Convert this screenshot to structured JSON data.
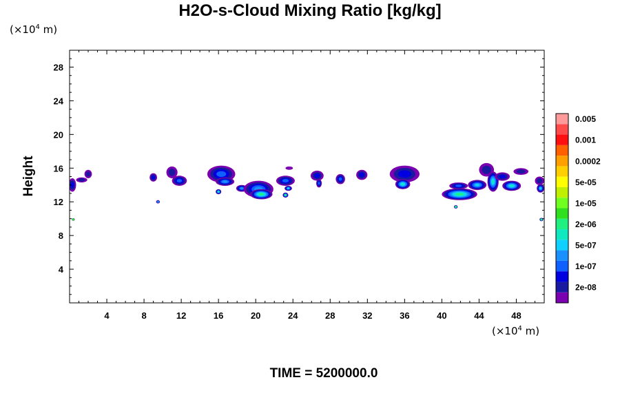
{
  "chart_data": {
    "type": "heatmap",
    "title": "H2O-s-Cloud Mixing Ratio [kg/kg]",
    "ylabel": "Height",
    "xlabel": "",
    "x_unit_prefix": "(×10",
    "unit_exponent": "4",
    "unit_suffix": " m)",
    "xlim": [
      0,
      51
    ],
    "ylim": [
      0,
      30
    ],
    "x_ticks": [
      4,
      8,
      12,
      16,
      20,
      24,
      28,
      32,
      36,
      40,
      44,
      48
    ],
    "y_ticks": [
      4,
      8,
      12,
      16,
      20,
      24,
      28
    ],
    "grid": false,
    "legend_position": "right",
    "colorbar": {
      "levels": [
        "2e-08",
        "1e-07",
        "5e-07",
        "2e-06",
        "1e-05",
        "5e-05",
        "0.0002",
        "0.001",
        "0.005"
      ],
      "colors": [
        "#7a00b0",
        "#1a1aa0",
        "#0000e0",
        "#1060ff",
        "#1a90ff",
        "#10d0ff",
        "#10e8c0",
        "#20f080",
        "#30e020",
        "#70ff20",
        "#c0f000",
        "#ffff00",
        "#ffd000",
        "#ffa000",
        "#ff6000",
        "#ff1010",
        "#ff4a4a",
        "#ff9a9a"
      ]
    },
    "cloud_regions": [
      {
        "x": 0.3,
        "y": 14.0,
        "rx": 0.4,
        "ry": 0.8,
        "level": 3
      },
      {
        "x": 1.3,
        "y": 14.6,
        "rx": 0.6,
        "ry": 0.3,
        "level": 2
      },
      {
        "x": 2.0,
        "y": 15.3,
        "rx": 0.4,
        "ry": 0.5,
        "level": 2
      },
      {
        "x": 9.0,
        "y": 14.9,
        "rx": 0.4,
        "ry": 0.5,
        "level": 3
      },
      {
        "x": 9.5,
        "y": 12.0,
        "rx": 0.2,
        "ry": 0.2,
        "level": 5
      },
      {
        "x": 11.0,
        "y": 15.5,
        "rx": 0.6,
        "ry": 0.7,
        "level": 2
      },
      {
        "x": 11.8,
        "y": 14.5,
        "rx": 0.8,
        "ry": 0.6,
        "level": 4
      },
      {
        "x": 16.3,
        "y": 15.3,
        "rx": 1.5,
        "ry": 1.0,
        "level": 4
      },
      {
        "x": 16.7,
        "y": 14.4,
        "rx": 1.0,
        "ry": 0.5,
        "level": 5
      },
      {
        "x": 16.0,
        "y": 13.2,
        "rx": 0.3,
        "ry": 0.3,
        "level": 7
      },
      {
        "x": 18.5,
        "y": 13.6,
        "rx": 0.6,
        "ry": 0.4,
        "level": 5
      },
      {
        "x": 20.3,
        "y": 13.5,
        "rx": 1.6,
        "ry": 1.0,
        "level": 5
      },
      {
        "x": 20.6,
        "y": 12.9,
        "rx": 1.2,
        "ry": 0.6,
        "level": 8
      },
      {
        "x": 23.2,
        "y": 14.5,
        "rx": 1.0,
        "ry": 0.6,
        "level": 4
      },
      {
        "x": 23.2,
        "y": 12.8,
        "rx": 0.3,
        "ry": 0.3,
        "level": 8
      },
      {
        "x": 23.5,
        "y": 13.6,
        "rx": 0.4,
        "ry": 0.3,
        "level": 6
      },
      {
        "x": 23.6,
        "y": 16.0,
        "rx": 0.4,
        "ry": 0.2,
        "level": 1
      },
      {
        "x": 26.6,
        "y": 15.1,
        "rx": 0.7,
        "ry": 0.6,
        "level": 3
      },
      {
        "x": 26.8,
        "y": 14.2,
        "rx": 0.3,
        "ry": 0.5,
        "level": 4
      },
      {
        "x": 29.1,
        "y": 14.7,
        "rx": 0.5,
        "ry": 0.6,
        "level": 4
      },
      {
        "x": 31.4,
        "y": 15.2,
        "rx": 0.6,
        "ry": 0.6,
        "level": 3
      },
      {
        "x": 36.0,
        "y": 15.3,
        "rx": 1.6,
        "ry": 1.0,
        "level": 3
      },
      {
        "x": 35.8,
        "y": 14.1,
        "rx": 0.8,
        "ry": 0.6,
        "level": 7
      },
      {
        "x": 41.9,
        "y": 12.9,
        "rx": 1.9,
        "ry": 0.7,
        "level": 8
      },
      {
        "x": 41.5,
        "y": 11.4,
        "rx": 0.2,
        "ry": 0.2,
        "level": 8
      },
      {
        "x": 41.8,
        "y": 13.9,
        "rx": 1.0,
        "ry": 0.4,
        "level": 4
      },
      {
        "x": 43.8,
        "y": 14.0,
        "rx": 1.0,
        "ry": 0.6,
        "level": 6
      },
      {
        "x": 44.8,
        "y": 15.8,
        "rx": 0.8,
        "ry": 0.8,
        "level": 2
      },
      {
        "x": 45.5,
        "y": 14.4,
        "rx": 0.6,
        "ry": 1.2,
        "level": 7
      },
      {
        "x": 46.5,
        "y": 15.0,
        "rx": 0.8,
        "ry": 0.5,
        "level": 3
      },
      {
        "x": 47.5,
        "y": 13.9,
        "rx": 1.0,
        "ry": 0.6,
        "level": 7
      },
      {
        "x": 48.5,
        "y": 15.6,
        "rx": 0.8,
        "ry": 0.4,
        "level": 2
      },
      {
        "x": 50.5,
        "y": 14.5,
        "rx": 0.5,
        "ry": 0.5,
        "level": 2
      },
      {
        "x": 50.6,
        "y": 13.6,
        "rx": 0.4,
        "ry": 0.5,
        "level": 6
      },
      {
        "x": 50.7,
        "y": 9.9,
        "rx": 0.2,
        "ry": 0.2,
        "level": 8
      },
      {
        "x": 0.4,
        "y": 9.9,
        "rx": 0.15,
        "ry": 0.15,
        "level": 9
      }
    ],
    "annotation": "TIME = 5200000.0"
  }
}
